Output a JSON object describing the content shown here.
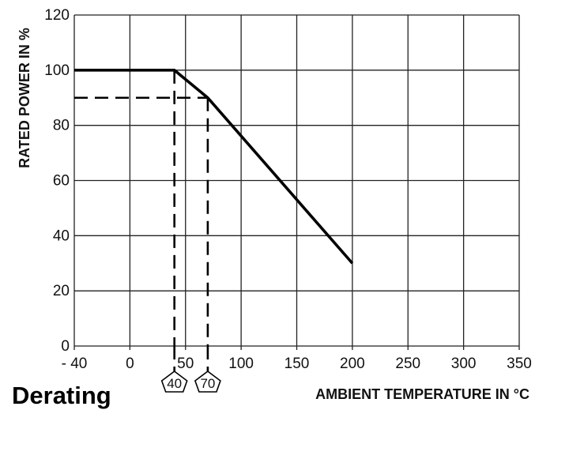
{
  "caption": "Derating",
  "chart_data": {
    "type": "line",
    "xlabel": "AMBIENT TEMPERATURE IN °C",
    "ylabel": "RATED POWER IN %",
    "xlim": [
      -40,
      350
    ],
    "ylim": [
      0,
      120
    ],
    "x_ticks": [
      -40,
      0,
      50,
      100,
      150,
      200,
      250,
      300,
      350
    ],
    "x_tick_labels": [
      "- 40",
      "0",
      "50",
      "100",
      "150",
      "200",
      "250",
      "300",
      "350"
    ],
    "y_ticks": [
      0,
      20,
      40,
      60,
      80,
      100,
      120
    ],
    "y_tick_labels": [
      "0",
      "20",
      "40",
      "60",
      "80",
      "100",
      "120"
    ],
    "grid": true,
    "series": [
      {
        "style": "solid",
        "x": [
          -40,
          40,
          70,
          200
        ],
        "y": [
          100,
          100,
          90,
          30
        ]
      }
    ],
    "reference_lines": [
      {
        "style": "dashed",
        "x": [
          -40,
          70
        ],
        "y": [
          90,
          90
        ]
      },
      {
        "style": "dashed",
        "x": [
          40,
          40
        ],
        "y": [
          100,
          0
        ]
      },
      {
        "style": "dashed",
        "x": [
          70,
          70
        ],
        "y": [
          90,
          0
        ]
      }
    ],
    "markers": [
      {
        "x": 40,
        "label": "40"
      },
      {
        "x": 70,
        "label": "70"
      }
    ]
  }
}
